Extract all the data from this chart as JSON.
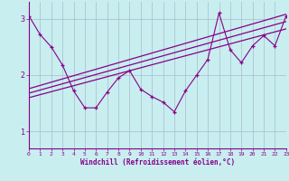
{
  "xlabel": "Windchill (Refroidissement éolien,°C)",
  "bg_color": "#c8eef0",
  "line_color": "#880088",
  "grid_color": "#aabbcc",
  "x_data": [
    0,
    1,
    2,
    3,
    4,
    5,
    6,
    7,
    8,
    9,
    10,
    11,
    12,
    13,
    14,
    15,
    16,
    17,
    18,
    19,
    20,
    21,
    22,
    23
  ],
  "y_data": [
    3.05,
    2.72,
    2.5,
    2.18,
    1.72,
    1.42,
    1.42,
    1.7,
    1.95,
    2.08,
    1.75,
    1.62,
    1.52,
    1.35,
    1.72,
    2.0,
    2.28,
    3.1,
    2.45,
    2.22,
    2.52,
    2.7,
    2.52,
    3.05
  ],
  "trend1_x": [
    0,
    23
  ],
  "trend1_y": [
    1.6,
    2.82
  ],
  "trend2_x": [
    0,
    23
  ],
  "trend2_y": [
    1.68,
    2.95
  ],
  "trend3_x": [
    0,
    23
  ],
  "trend3_y": [
    1.76,
    3.08
  ],
  "yticks": [
    1,
    2,
    3
  ],
  "ylim": [
    0.7,
    3.3
  ],
  "xlim": [
    0,
    23
  ]
}
